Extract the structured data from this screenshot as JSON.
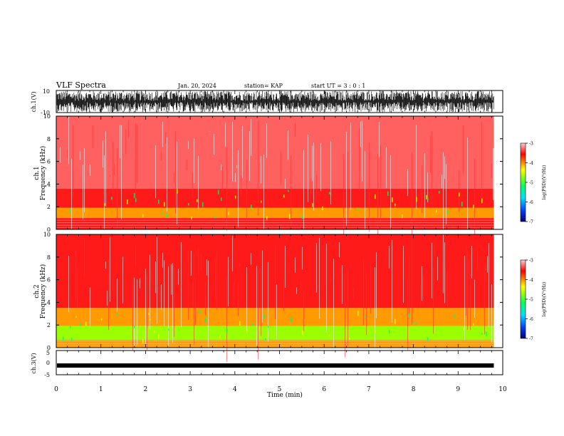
{
  "header": {
    "title": "VLF Spectra",
    "date": "Jan. 20, 2024",
    "station": "station= KAP",
    "start": "start UT =  3 : 0  : 1"
  },
  "chart_data": [
    {
      "type": "line",
      "panel": "ch1-waveform",
      "ylabel": "ch.1(V)",
      "ylim": [
        -10,
        10
      ],
      "yticks": [
        "10",
        "-10"
      ],
      "xlim": [
        0,
        10
      ]
    },
    {
      "type": "heatmap",
      "panel": "ch1-spectrogram",
      "ylabel": "ch.1\nFrequency (kHz)",
      "ylim": [
        0,
        10
      ],
      "yticks": [
        "0",
        "2",
        "4",
        "6",
        "8",
        "10"
      ],
      "xlim": [
        0,
        10
      ],
      "data_end_min": 9.8,
      "colorbar": {
        "label": "log(PSD)(V²/Hz)",
        "range": [
          -7,
          -3
        ],
        "ticks": [
          "-3",
          "-4",
          "-5",
          "-6",
          "-7"
        ]
      },
      "bands": [
        {
          "f_lo": 3.6,
          "f_hi": 10.0,
          "level": -3.3
        },
        {
          "f_lo": 1.9,
          "f_hi": 3.6,
          "level": -3.7
        },
        {
          "f_lo": 1.0,
          "f_hi": 1.9,
          "level": -4.2
        },
        {
          "f_lo": 0.0,
          "f_hi": 1.0,
          "level": -3.9
        }
      ]
    },
    {
      "type": "heatmap",
      "panel": "ch2-spectrogram",
      "ylabel": "ch.2\nFrequency (kHz)",
      "ylim": [
        0,
        10
      ],
      "yticks": [
        "0",
        "2",
        "4",
        "6",
        "8",
        "10"
      ],
      "xlim": [
        0,
        10
      ],
      "data_end_min": 9.8,
      "colorbar": {
        "label": "log(PSD)(V²/Hz)",
        "range": [
          -7,
          -3
        ],
        "ticks": [
          "-3",
          "-4",
          "-5",
          "-6",
          "-7"
        ]
      },
      "bands": [
        {
          "f_lo": 3.5,
          "f_hi": 10.0,
          "level": -3.6
        },
        {
          "f_lo": 1.9,
          "f_hi": 3.5,
          "level": -4.0
        },
        {
          "f_lo": 0.7,
          "f_hi": 1.9,
          "level": -4.9
        },
        {
          "f_lo": 0.0,
          "f_hi": 0.7,
          "level": -4.1
        }
      ]
    },
    {
      "type": "line",
      "panel": "ch3-waveform",
      "ylabel": "ch.3(V)",
      "ylim": [
        -5,
        5
      ],
      "yticks": [
        "5",
        "0",
        "-5"
      ],
      "xlim": [
        0,
        10
      ],
      "level_v": -1.2,
      "xlabel": "Time (min)",
      "xticks": [
        "0",
        "1",
        "2",
        "3",
        "4",
        "5",
        "6",
        "7",
        "8",
        "9",
        "10"
      ]
    }
  ],
  "colors": {
    "waveform": "#000000",
    "colormap": [
      "#0000a0",
      "#0044ff",
      "#00d0ff",
      "#00ff70",
      "#70ff00",
      "#ffff00",
      "#ffa000",
      "#ff2000",
      "#ff3030",
      "#ffffff"
    ]
  }
}
